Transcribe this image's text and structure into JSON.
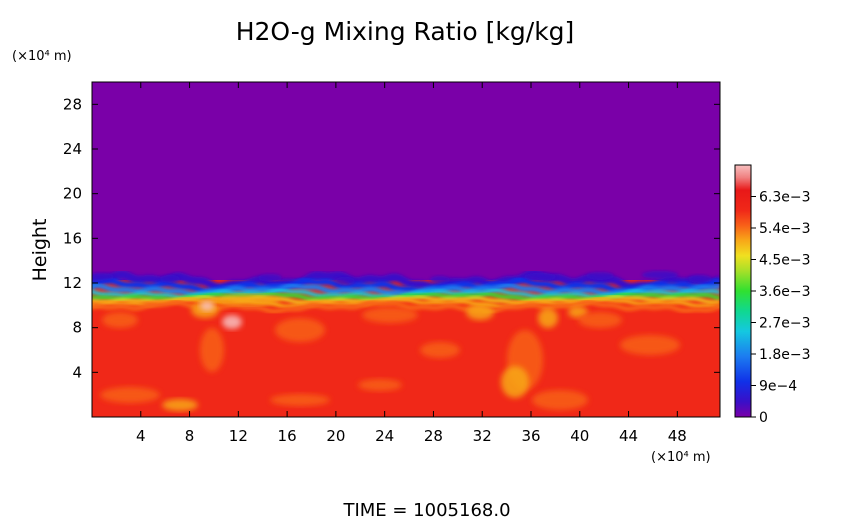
{
  "chart_data": {
    "type": "heatmap",
    "title": "H2O-g Mixing Ratio [kg/kg]",
    "ylabel": "Height",
    "y_unit": "(×10⁴ m)",
    "x_unit": "(×10⁴ m)",
    "xlim": [
      0,
      51.5
    ],
    "ylim": [
      0,
      30
    ],
    "x_ticks": [
      "4",
      "8",
      "12",
      "16",
      "20",
      "24",
      "28",
      "32",
      "36",
      "40",
      "44",
      "48"
    ],
    "y_ticks": [
      "4",
      "8",
      "12",
      "16",
      "20",
      "24",
      "28"
    ],
    "colorbar": {
      "min": 0,
      "max": 0.0072,
      "labels": [
        "6.3e−3",
        "5.4e−3",
        "4.5e−3",
        "3.6e−3",
        "2.7e−3",
        "1.8e−3",
        "9e−4",
        "0"
      ],
      "label_values": [
        0.0063,
        0.0054,
        0.0045,
        0.0036,
        0.0027,
        0.0018,
        0.0009,
        0
      ],
      "colors": [
        "#7a00a8",
        "#3a0fc8",
        "#1030e8",
        "#1c7cf0",
        "#14c8e0",
        "#10d890",
        "#30e030",
        "#a8e028",
        "#f0e020",
        "#f8a818",
        "#f86018",
        "#f02818",
        "#e81818",
        "#f08080",
        "#f8c0c0"
      ]
    },
    "field_description": {
      "upper_layer_value": 0,
      "lower_layer_value": 0.006,
      "interface_height": 11.3
    },
    "footer": "TIME = 1005168.0"
  }
}
